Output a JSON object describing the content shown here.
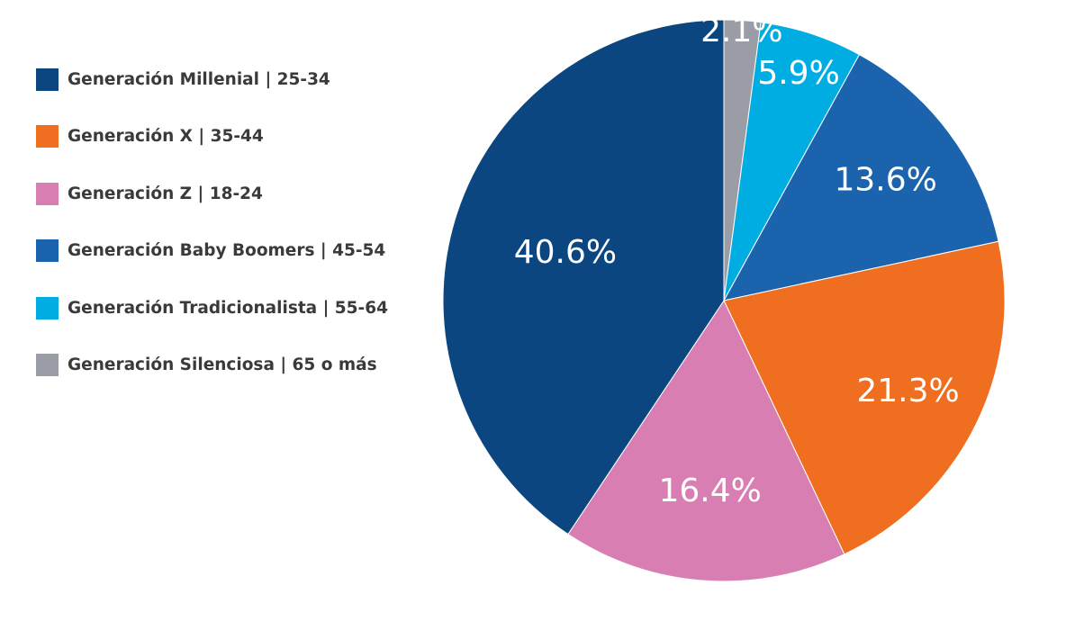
{
  "chart_data": {
    "type": "pie",
    "title": "",
    "categories": [
      "Generación Silenciosa | 65 o más",
      "Generación Tradicionalista | 55-64",
      "Generación Baby Boomers | 45-54",
      "Generación X | 35-44",
      "Generación Z | 18-24",
      "Generación Millenial | 25-34"
    ],
    "values": [
      2.1,
      5.9,
      13.6,
      21.3,
      16.4,
      40.6
    ],
    "value_labels": [
      "2.1%",
      "5.9%",
      "13.6%",
      "21.3%",
      "16.4%",
      "40.6%"
    ],
    "colors": [
      "#9a9ca6",
      "#00ade3",
      "#1c63ae",
      "#ef6e1f",
      "#d87eb3",
      "#0b4680"
    ],
    "start": "12 o'clock",
    "direction": "clockwise",
    "legend_position": "left",
    "legend": [
      {
        "label": "Generación Millenial | 25-34",
        "color": "#0b4680"
      },
      {
        "label": "Generación X | 35-44",
        "color": "#ef6e1f"
      },
      {
        "label": "Generación Z | 18-24",
        "color": "#d87eb3"
      },
      {
        "label": "Generación Baby Boomers | 45-54",
        "color": "#1c63ae"
      },
      {
        "label": "Generación Tradicionalista | 55-64",
        "color": "#00ade3"
      },
      {
        "label": "Generación Silenciosa | 65 o más",
        "color": "#9a9ca6"
      }
    ]
  }
}
